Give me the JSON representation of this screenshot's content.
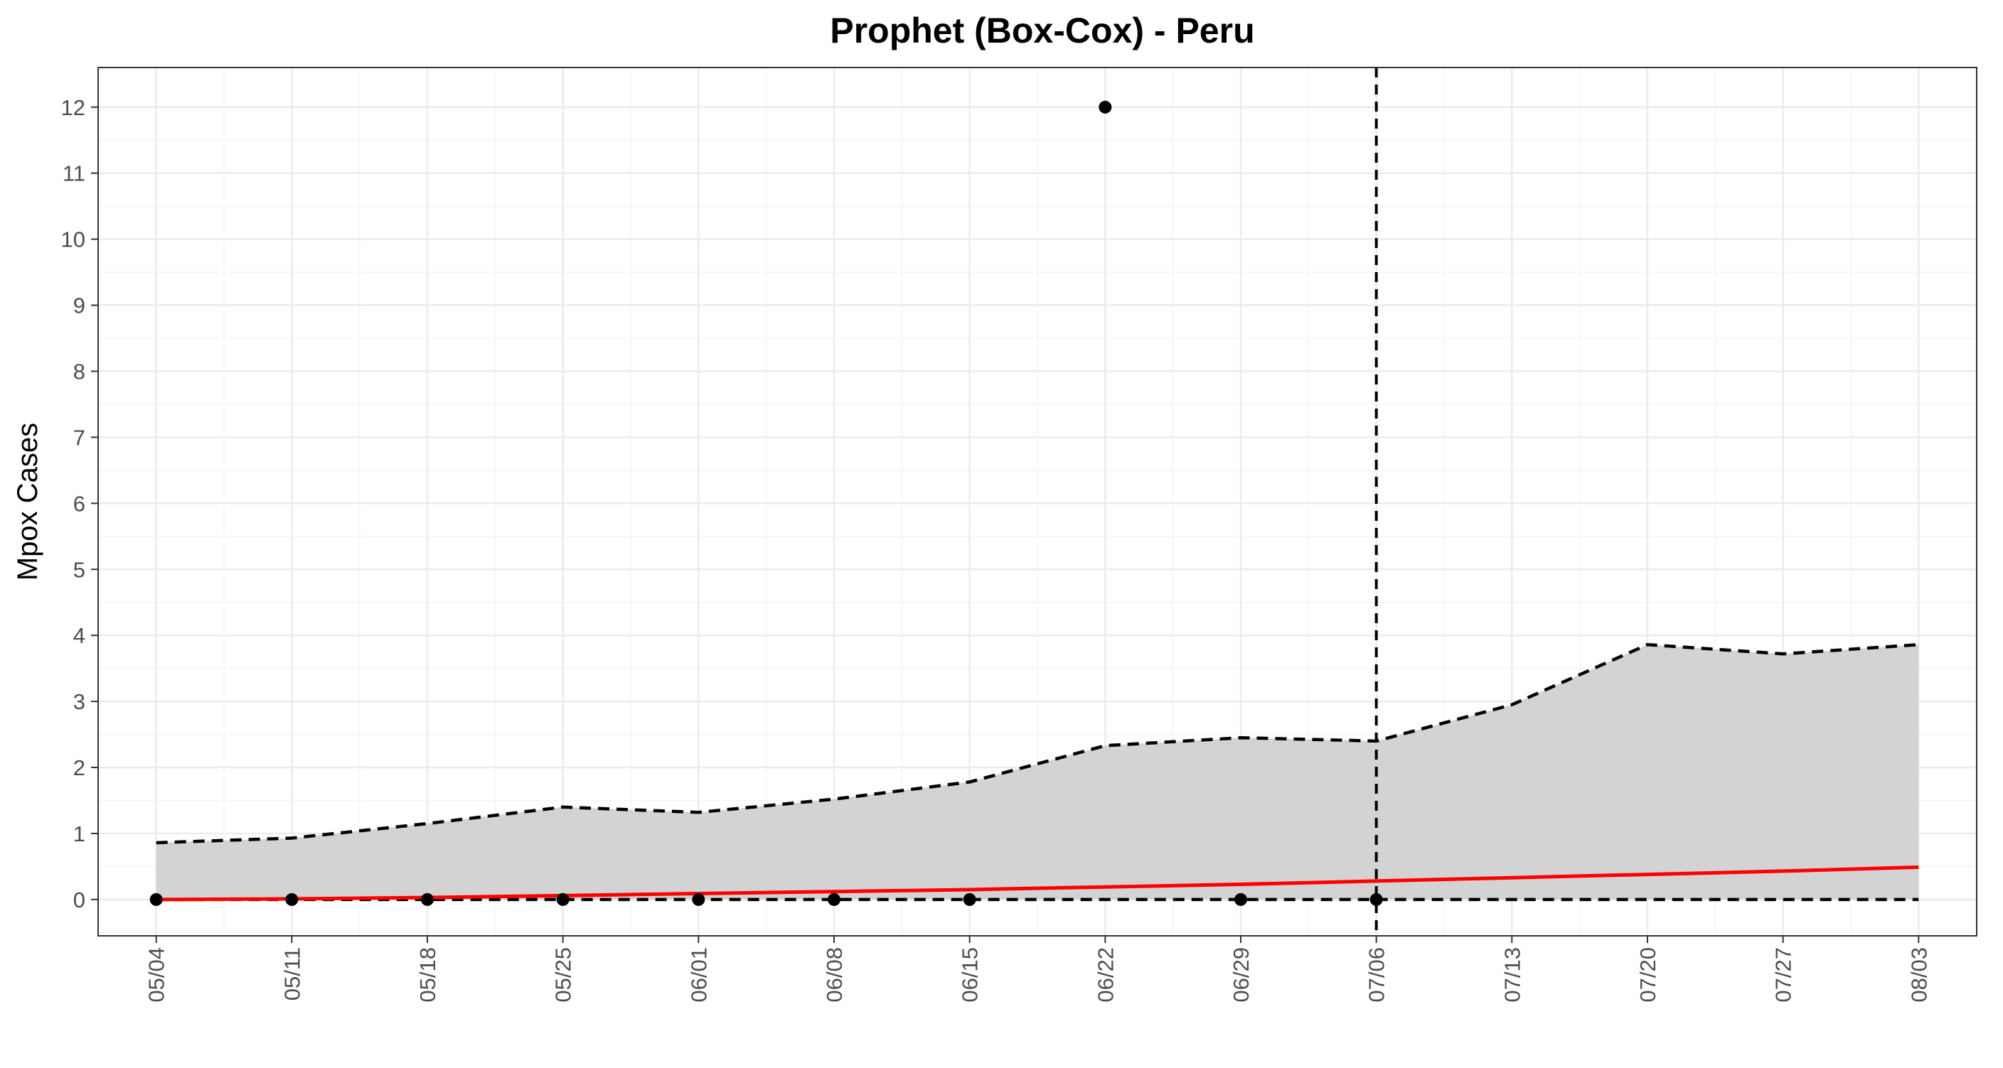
{
  "chart_data": {
    "type": "line",
    "title": "Prophet (Box-Cox) - Peru",
    "xlabel": "",
    "ylabel": "Mpox Cases",
    "x_tick_labels": [
      "05/04",
      "05/11",
      "05/18",
      "05/25",
      "06/01",
      "06/08",
      "06/15",
      "06/22",
      "06/29",
      "07/06",
      "07/13",
      "07/20",
      "07/27",
      "08/03"
    ],
    "y_ticks": [
      0,
      1,
      2,
      3,
      4,
      5,
      6,
      7,
      8,
      9,
      10,
      11,
      12
    ],
    "xlim": [
      "05/01",
      "08/06"
    ],
    "ylim": [
      -0.55,
      12.6
    ],
    "grid": true,
    "legend": "none",
    "forecast_start": "07/06",
    "series": [
      {
        "type": "ribbon",
        "x": [
          "05/04",
          "05/11",
          "05/18",
          "05/25",
          "06/01",
          "06/08",
          "06/15",
          "06/22",
          "06/29",
          "07/06",
          "07/13",
          "07/20",
          "07/27",
          "08/03"
        ],
        "lower": [
          0,
          0,
          0,
          0,
          0,
          0,
          0,
          0,
          0,
          0,
          0,
          0,
          0,
          0
        ],
        "upper": [
          0.86,
          0.93,
          1.15,
          1.4,
          1.32,
          1.52,
          1.78,
          2.33,
          2.45,
          2.4,
          2.95,
          3.86,
          3.72,
          3.86
        ],
        "fill": "#d3d3d3",
        "border_color": "#000000",
        "border_style": "dashed"
      },
      {
        "type": "line",
        "x": [
          "05/04",
          "05/11",
          "05/18",
          "05/25",
          "06/01",
          "06/08",
          "06/15",
          "06/22",
          "06/29",
          "07/06",
          "07/13",
          "07/20",
          "07/27",
          "08/03"
        ],
        "values": [
          0.0,
          0.01,
          0.03,
          0.06,
          0.09,
          0.12,
          0.15,
          0.19,
          0.23,
          0.28,
          0.33,
          0.38,
          0.43,
          0.49
        ],
        "color": "#ff0000"
      },
      {
        "type": "points",
        "x": [
          "05/04",
          "05/11",
          "05/18",
          "05/25",
          "06/01",
          "06/08",
          "06/15",
          "06/22",
          "06/29",
          "07/06"
        ],
        "values": [
          0,
          0,
          0,
          0,
          0,
          0,
          0,
          12,
          0,
          0
        ],
        "color": "#000000"
      }
    ]
  }
}
